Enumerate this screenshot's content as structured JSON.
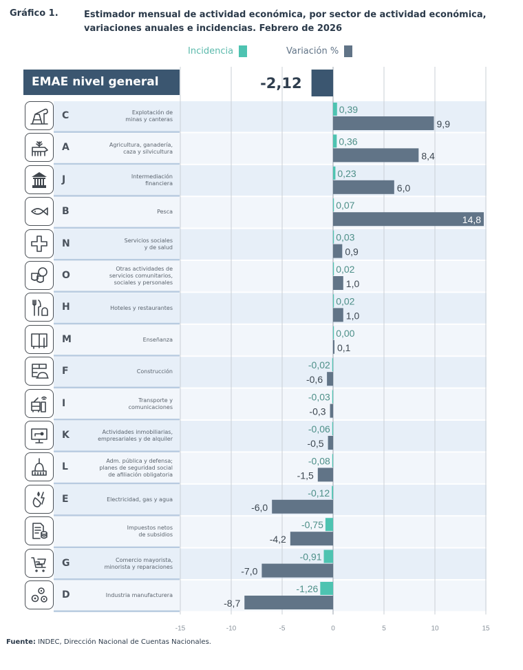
{
  "header": {
    "label": "Gráfico 1.",
    "title": "Estimador mensual de actividad económica, por sector de actividad económica, variaciones anuales e incidencias. Febrero de 2026"
  },
  "legend": {
    "incidence_label": "Incidencia",
    "variation_label": "Variación %"
  },
  "colors": {
    "incidence": "#4ec3b1",
    "variation": "#617487",
    "emae": "#3b5670",
    "row_dark": "#e7eff8",
    "row_light": "#f2f6fb",
    "grid": "#c9cfd6",
    "incidence_text": "#4d8f88",
    "variation_text": "#3c4650"
  },
  "emae": {
    "label": "EMAE nivel general",
    "value": -2.12,
    "value_label": "-2,12"
  },
  "source": {
    "prefix": "Fuente:",
    "text": " INDEC, Dirección Nacional de Cuentas Nacionales."
  },
  "chart_data": {
    "type": "bar",
    "orientation": "horizontal",
    "title": "Estimador mensual de actividad económica, por sector de actividad económica, variaciones anuales e incidencias. Febrero de 2026",
    "xlim": [
      -15,
      15
    ],
    "xticks": [
      -15,
      -10,
      -5,
      0,
      5,
      10,
      15
    ],
    "xtick_labels": [
      "-15",
      "-10",
      "-5",
      "0",
      "5",
      "10",
      "15"
    ],
    "grid": true,
    "legend_position": "top-center",
    "categories": [
      {
        "code": "C",
        "name": "Explotación de minas y canteras",
        "desc_lines": [
          "Explotación de",
          "minas y canteras"
        ],
        "icon": "oil-pump-icon"
      },
      {
        "code": "A",
        "name": "Agricultura, ganadería, caza y silvicultura",
        "desc_lines": [
          "Agricultura, ganadería,",
          "caza y silvicultura"
        ],
        "icon": "cow-plant-icon"
      },
      {
        "code": "J",
        "name": "Intermediación financiera",
        "desc_lines": [
          "Intermediación",
          "financiera"
        ],
        "icon": "bank-icon"
      },
      {
        "code": "B",
        "name": "Pesca",
        "desc_lines": [
          "Pesca"
        ],
        "icon": "fish-icon"
      },
      {
        "code": "N",
        "name": "Servicios sociales y de salud",
        "desc_lines": [
          "Servicios sociales",
          "y de salud"
        ],
        "icon": "health-cross-icon"
      },
      {
        "code": "O",
        "name": "Otras actividades de servicios comunitarios, sociales y personales",
        "desc_lines": [
          "Otras actividades de",
          "servicios comunitarios,",
          "sociales y personales"
        ],
        "icon": "theater-masks-icon"
      },
      {
        "code": "H",
        "name": "Hoteles y restaurantes",
        "desc_lines": [
          "Hoteles y restaurantes"
        ],
        "icon": "cutlery-hotel-icon"
      },
      {
        "code": "M",
        "name": "Enseñanza",
        "desc_lines": [
          "Enseñanza"
        ],
        "icon": "book-icon"
      },
      {
        "code": "F",
        "name": "Construcción",
        "desc_lines": [
          "Construcción"
        ],
        "icon": "bricks-helmet-icon"
      },
      {
        "code": "I",
        "name": "Transporte y comunicaciones",
        "desc_lines": [
          "Transporte y",
          "comunicaciones"
        ],
        "icon": "bus-phone-icon"
      },
      {
        "code": "K",
        "name": "Actividades inmobiliarias, empresariales y de alquiler",
        "desc_lines": [
          "Actividades inmobiliarias,",
          "empresariales y de alquiler"
        ],
        "icon": "monitor-key-icon"
      },
      {
        "code": "L",
        "name": "Adm. pública y defensa; planes de seguridad social de afiliación obligatoria",
        "desc_lines": [
          "Adm. pública y defensa;",
          "planes de seguridad social",
          "de afiliación obligatoria"
        ],
        "icon": "capitol-icon"
      },
      {
        "code": "E",
        "name": "Electricidad, gas y agua",
        "desc_lines": [
          "Electricidad, gas y agua"
        ],
        "icon": "drop-flame-bolt-icon"
      },
      {
        "code": "",
        "name": "Impuestos netos de subsidios",
        "desc_lines": [
          "Impuestos netos",
          "de subsidios"
        ],
        "icon": "document-coins-icon"
      },
      {
        "code": "G",
        "name": "Comercio mayorista, minorista y reparaciones",
        "desc_lines": [
          "Comercio mayorista,",
          "minorista y reparaciones"
        ],
        "icon": "cart-boxes-icon"
      },
      {
        "code": "D",
        "name": "Industria manufacturera",
        "desc_lines": [
          "Industria manufacturera"
        ],
        "icon": "gears-icon"
      }
    ],
    "series": [
      {
        "name": "Incidencia",
        "values": [
          0.39,
          0.36,
          0.23,
          0.07,
          0.03,
          0.02,
          0.02,
          0.0,
          -0.02,
          -0.03,
          -0.06,
          -0.08,
          -0.12,
          -0.75,
          -0.91,
          -1.26
        ],
        "labels": [
          "0,39",
          "0,36",
          "0,23",
          "0,07",
          "0,03",
          "0,02",
          "0,02",
          "0,00",
          "-0,02",
          "-0,03",
          "-0,06",
          "-0,08",
          "-0,12",
          "-0,75",
          "-0,91",
          "-1,26"
        ]
      },
      {
        "name": "Variación %",
        "values": [
          9.9,
          8.4,
          6.0,
          14.8,
          0.9,
          1.0,
          1.0,
          0.1,
          -0.6,
          -0.3,
          -0.5,
          -1.5,
          -6.0,
          -4.2,
          -7.0,
          -8.7
        ],
        "labels": [
          "9,9",
          "8,4",
          "6,0",
          "14,8",
          "0,9",
          "1,0",
          "1,0",
          "0,1",
          "-0,6",
          "-0,3",
          "-0,5",
          "-1,5",
          "-6,0",
          "-4,2",
          "-7,0",
          "-8,7"
        ]
      }
    ],
    "total": {
      "name": "EMAE nivel general",
      "value": -2.12,
      "label": "-2,12"
    }
  }
}
